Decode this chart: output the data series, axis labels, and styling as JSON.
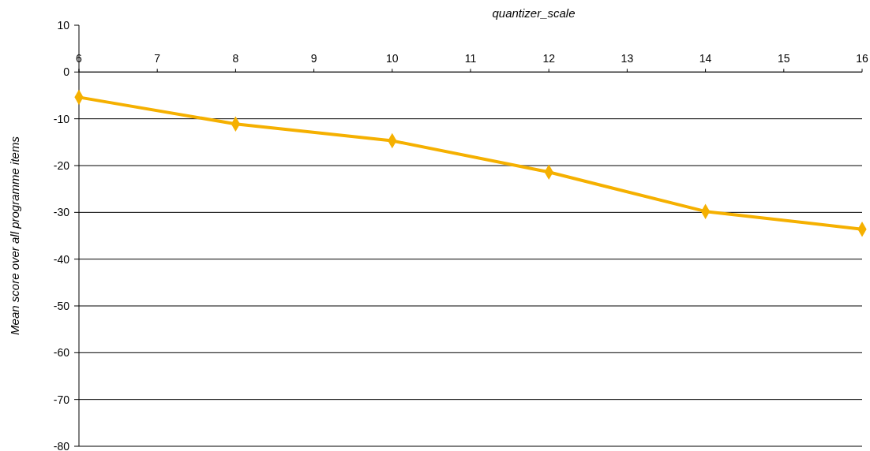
{
  "chart_data": {
    "type": "line",
    "xlabel": "quantizer_scale",
    "ylabel": "Mean score over all programme items",
    "x": [
      6,
      8,
      10,
      12,
      14,
      16
    ],
    "series": [
      {
        "color": "#f5b000",
        "values": [
          -5.4,
          -11.1,
          -14.7,
          -21.4,
          -29.8,
          -33.6
        ]
      }
    ],
    "xlim": [
      6,
      16
    ],
    "xticks": [
      6,
      7,
      8,
      9,
      10,
      11,
      12,
      13,
      14,
      15,
      16
    ],
    "ylim": [
      -80,
      10
    ],
    "yticks": [
      10,
      0,
      -10,
      -20,
      -30,
      -40,
      -50,
      -60,
      -70,
      -80
    ],
    "grid": "y",
    "marker": "diamond",
    "line_style": "solid"
  }
}
